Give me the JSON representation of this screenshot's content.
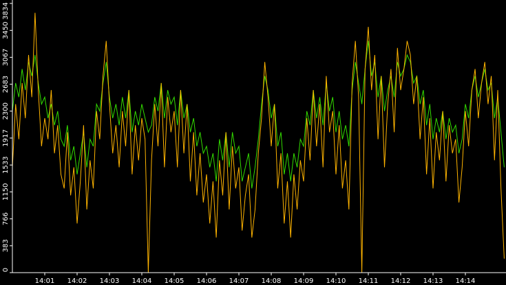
{
  "chart_data": {
    "type": "line",
    "ylim": [
      0,
      3834
    ],
    "yticks": [
      0,
      383,
      766,
      1150,
      1533,
      1917,
      2300,
      2683,
      3067,
      3450,
      3834
    ],
    "grid": false,
    "categories": [
      null,
      null,
      null,
      null,
      null,
      null,
      null,
      null,
      null,
      null,
      "14:01",
      null,
      null,
      null,
      null,
      null,
      null,
      null,
      null,
      null,
      "14:02",
      null,
      null,
      null,
      null,
      null,
      null,
      null,
      null,
      null,
      "14:03",
      null,
      null,
      null,
      null,
      null,
      null,
      null,
      null,
      null,
      "14:04",
      null,
      null,
      null,
      null,
      null,
      null,
      null,
      null,
      null,
      "14:05",
      null,
      null,
      null,
      null,
      null,
      null,
      null,
      null,
      null,
      "14:06",
      null,
      null,
      null,
      null,
      null,
      null,
      null,
      null,
      null,
      "14:07",
      null,
      null,
      null,
      null,
      null,
      null,
      null,
      null,
      null,
      "14:08",
      null,
      null,
      null,
      null,
      null,
      null,
      null,
      null,
      null,
      "14:09",
      null,
      null,
      null,
      null,
      null,
      null,
      null,
      null,
      null,
      "14:10",
      null,
      null,
      null,
      null,
      null,
      null,
      null,
      null,
      null,
      "14:11",
      null,
      null,
      null,
      null,
      null,
      null,
      null,
      null,
      null,
      "14:12",
      null,
      null,
      null,
      null,
      null,
      null,
      null,
      null,
      null,
      "14:13",
      null,
      null,
      null,
      null,
      null,
      null,
      null,
      null,
      null,
      "14:14",
      null,
      null,
      null,
      null,
      null,
      null,
      null,
      null,
      null,
      null,
      null,
      null
    ],
    "series": [
      {
        "color": "#33dd00",
        "values": [
          2300,
          2700,
          2500,
          2900,
          2600,
          3000,
          2800,
          3100,
          2700,
          2400,
          2500,
          2200,
          2400,
          2100,
          2300,
          1900,
          1800,
          2100,
          1600,
          1800,
          1400,
          1700,
          2000,
          1500,
          1900,
          1800,
          2400,
          2300,
          2700,
          3000,
          2500,
          2200,
          2400,
          2100,
          2500,
          2200,
          2600,
          2000,
          2300,
          2100,
          2400,
          2200,
          2000,
          2100,
          2500,
          2300,
          2700,
          2200,
          2600,
          2400,
          2500,
          2100,
          2600,
          2200,
          2400,
          2000,
          2200,
          1800,
          2000,
          1700,
          1800,
          1500,
          1700,
          1300,
          1900,
          1600,
          2000,
          1500,
          2000,
          1700,
          1800,
          1300,
          1500,
          1700,
          1200,
          1500,
          1900,
          2400,
          2800,
          2600,
          2200,
          2400,
          1800,
          2000,
          1400,
          1700,
          1300,
          1700,
          1500,
          1900,
          1800,
          2300,
          2100,
          2600,
          2200,
          2500,
          2100,
          2700,
          2300,
          2500,
          2000,
          2300,
          1900,
          2100,
          1800,
          2600,
          3000,
          2700,
          2400,
          2900,
          3300,
          2800,
          3000,
          2500,
          2800,
          2300,
          2600,
          2800,
          2500,
          3000,
          2800,
          2900,
          3100,
          3000,
          2700,
          2800,
          2400,
          2600,
          2100,
          2400,
          1900,
          2200,
          2000,
          2300,
          1900,
          2200,
          2000,
          2100,
          1700,
          1900,
          2400,
          2200,
          2600,
          2800,
          2500,
          2700,
          2900,
          2600,
          2700,
          2200,
          2500,
          2000,
          1500
        ]
      },
      {
        "color": "#ffb400",
        "values": [
          1500,
          2400,
          1900,
          2700,
          2200,
          3100,
          2500,
          3700,
          2600,
          1800,
          2200,
          1900,
          2600,
          1700,
          2100,
          1400,
          1200,
          2000,
          1100,
          1500,
          700,
          1300,
          2100,
          900,
          1600,
          1200,
          2300,
          1900,
          2800,
          3300,
          2400,
          1700,
          2100,
          1500,
          2300,
          1800,
          2600,
          1400,
          2100,
          1600,
          2200,
          1900,
          0,
          1600,
          2400,
          1800,
          2700,
          1500,
          2500,
          2000,
          2300,
          1500,
          2600,
          1700,
          2400,
          1300,
          2000,
          1100,
          1700,
          1000,
          1400,
          700,
          1300,
          500,
          1600,
          1100,
          2000,
          900,
          1800,
          1200,
          1500,
          600,
          1100,
          1400,
          500,
          900,
          1700,
          2200,
          3000,
          2500,
          1800,
          2400,
          1200,
          1700,
          700,
          1300,
          500,
          1400,
          900,
          1600,
          1300,
          2200,
          1600,
          2600,
          1800,
          2400,
          1500,
          2800,
          2000,
          2300,
          1400,
          2100,
          1200,
          1600,
          900,
          2700,
          3300,
          2500,
          0,
          2900,
          3500,
          2600,
          3100,
          1900,
          2800,
          1500,
          2400,
          2900,
          2000,
          3200,
          2600,
          2900,
          3300,
          3100,
          2400,
          2800,
          1900,
          2500,
          1400,
          2200,
          1200,
          2000,
          1600,
          2300,
          1300,
          2100,
          1700,
          1900,
          1000,
          1500,
          2300,
          1800,
          2600,
          2900,
          2200,
          2700,
          3000,
          2400,
          2800,
          1600,
          2600,
          1200,
          200
        ]
      }
    ]
  }
}
